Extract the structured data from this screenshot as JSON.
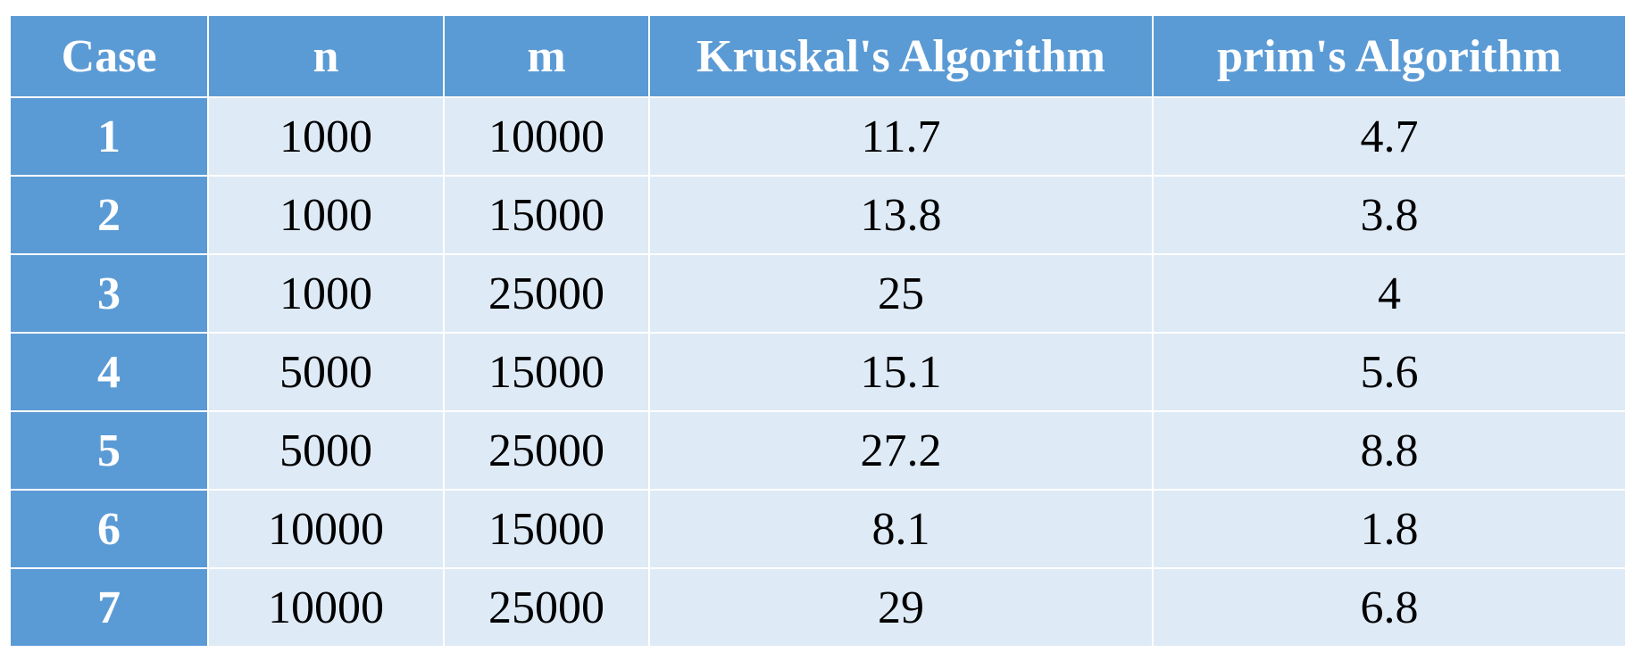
{
  "table": {
    "headers": [
      "Case",
      "n",
      "m",
      "Kruskal's Algorithm",
      "prim's Algorithm"
    ],
    "rows": [
      [
        "1",
        "1000",
        "10000",
        "11.7",
        "4.7"
      ],
      [
        "2",
        "1000",
        "15000",
        "13.8",
        "3.8"
      ],
      [
        "3",
        "1000",
        "25000",
        "25",
        "4"
      ],
      [
        "4",
        "5000",
        "15000",
        "15.1",
        "5.6"
      ],
      [
        "5",
        "5000",
        "25000",
        "27.2",
        "8.8"
      ],
      [
        "6",
        "10000",
        "15000",
        "8.1",
        "1.8"
      ],
      [
        "7",
        "10000",
        "25000",
        "29",
        "6.8"
      ]
    ]
  },
  "colors": {
    "header_bg": "#5b9bd5",
    "cell_bg": "#deeaf6",
    "header_text": "#ffffff",
    "cell_text": "#000000"
  }
}
